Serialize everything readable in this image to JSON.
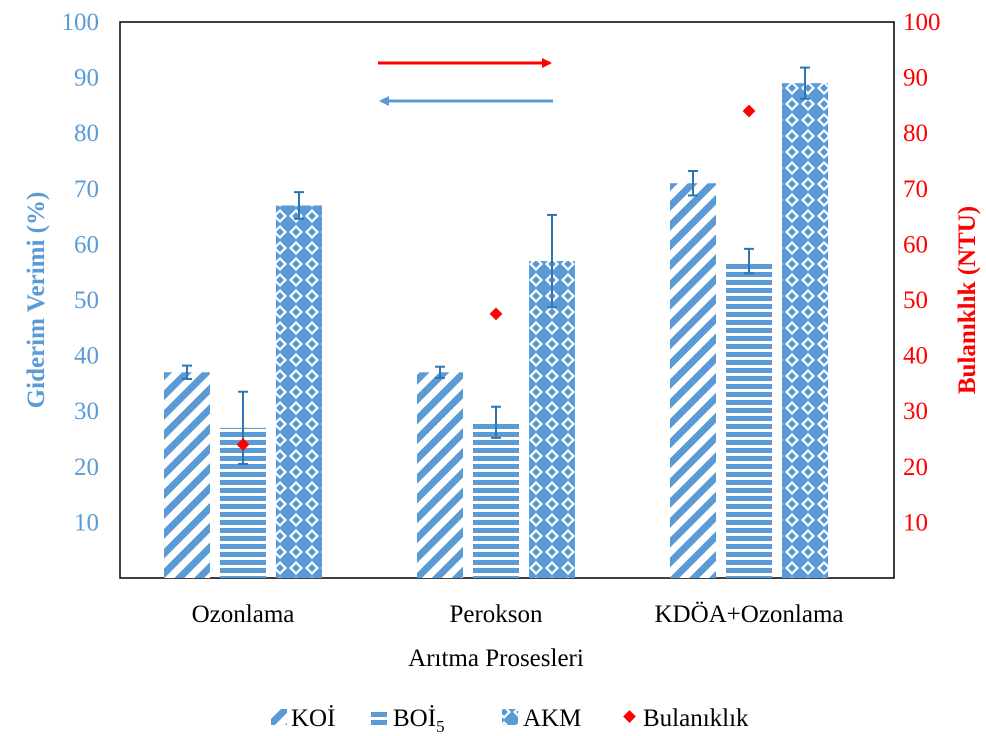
{
  "chart_data": {
    "type": "bar",
    "categories": [
      "Ozonlama",
      "Perokson",
      "KDÖA+Ozonlama"
    ],
    "xlabel": "Arıtma Prosesleri",
    "ylabel": "Giderim Verimi (%)",
    "y2label": "Bulanıklık (NTU)",
    "ylim": [
      0,
      100
    ],
    "y2lim": [
      0,
      100
    ],
    "yticks": [
      10,
      20,
      30,
      40,
      50,
      60,
      70,
      80,
      90,
      100
    ],
    "y2ticks": [
      10,
      20,
      30,
      40,
      50,
      60,
      70,
      80,
      90,
      100
    ],
    "grid": false,
    "legend_position": "bottom",
    "series": [
      {
        "name": "KOİ",
        "axis": "left",
        "kind": "bar",
        "pattern": "diagonal",
        "values": [
          37,
          37,
          71
        ],
        "error": [
          1.2,
          1.0,
          2.2
        ]
      },
      {
        "name": "BOİ",
        "name_subscript": "5",
        "axis": "left",
        "kind": "bar",
        "pattern": "horizontal",
        "values": [
          27,
          28,
          57
        ],
        "error": [
          6.5,
          2.8,
          2.2
        ]
      },
      {
        "name": "AKM",
        "axis": "left",
        "kind": "bar",
        "pattern": "diamond",
        "values": [
          67,
          57,
          89
        ],
        "error": [
          2.4,
          8.3,
          2.8
        ]
      },
      {
        "name": "Bulanıklık",
        "axis": "right",
        "kind": "marker",
        "values": [
          24,
          47.5,
          84
        ]
      }
    ],
    "annotations": {
      "arrow_right": {
        "color": "#ff0000",
        "meaning": "right axis"
      },
      "arrow_left": {
        "color": "#5b9bd5",
        "meaning": "left axis"
      }
    },
    "colors": {
      "bar": "#5b9bd5",
      "marker": "#ff0000",
      "left_axis": "#5b9bd5",
      "right_axis": "#ff0000"
    }
  }
}
